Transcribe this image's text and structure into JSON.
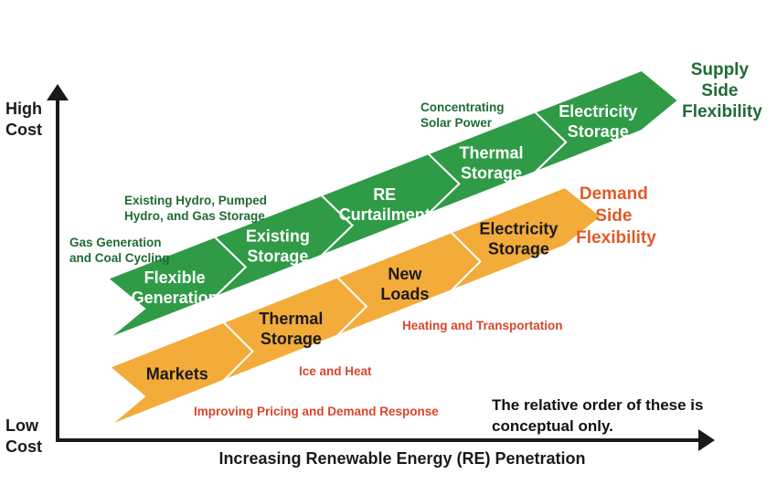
{
  "colors": {
    "supply": "#2f9b46",
    "supply_edge": "#ffffff",
    "demand": "#f3ab3a",
    "green_text": "#1f6b35",
    "red_text": "#d9452b",
    "axis": "#1a1a1a"
  },
  "axes": {
    "y_high": [
      "High",
      "Cost"
    ],
    "y_low": [
      "Low",
      "Cost"
    ],
    "x_label": "Increasing Renewable Energy (RE) Penetration"
  },
  "supply": {
    "title": [
      "Supply",
      "Side",
      "Flexibility"
    ],
    "chevrons": [
      {
        "label": [
          "Flexible",
          "Generation"
        ]
      },
      {
        "label": [
          "Existing",
          "Storage"
        ]
      },
      {
        "label": [
          "RE",
          "Curtailment"
        ]
      },
      {
        "label": [
          "Thermal",
          "Storage"
        ]
      },
      {
        "label": [
          "Electricity",
          "Storage"
        ]
      }
    ],
    "notes": [
      {
        "lines": [
          "Gas Generation",
          "and Coal Cycling"
        ]
      },
      {
        "lines": [
          "Existing Hydro,  Pumped",
          "Hydro, and Gas Storage"
        ]
      },
      {
        "lines": [
          "Concentrating",
          "Solar Power"
        ]
      }
    ]
  },
  "demand": {
    "title": [
      "Demand",
      "Side",
      "Flexibility"
    ],
    "chevrons": [
      {
        "label": [
          "Markets"
        ]
      },
      {
        "label": [
          "Thermal",
          "Storage"
        ]
      },
      {
        "label": [
          "New",
          "Loads"
        ]
      },
      {
        "label": [
          "Electricity",
          "Storage"
        ]
      }
    ],
    "notes": [
      {
        "lines": [
          "Improving Pricing and Demand Response"
        ]
      },
      {
        "lines": [
          "Ice and Heat"
        ]
      },
      {
        "lines": [
          "Heating and Transportation"
        ]
      }
    ]
  },
  "footnote": [
    "The relative order of these is",
    "conceptual only."
  ]
}
